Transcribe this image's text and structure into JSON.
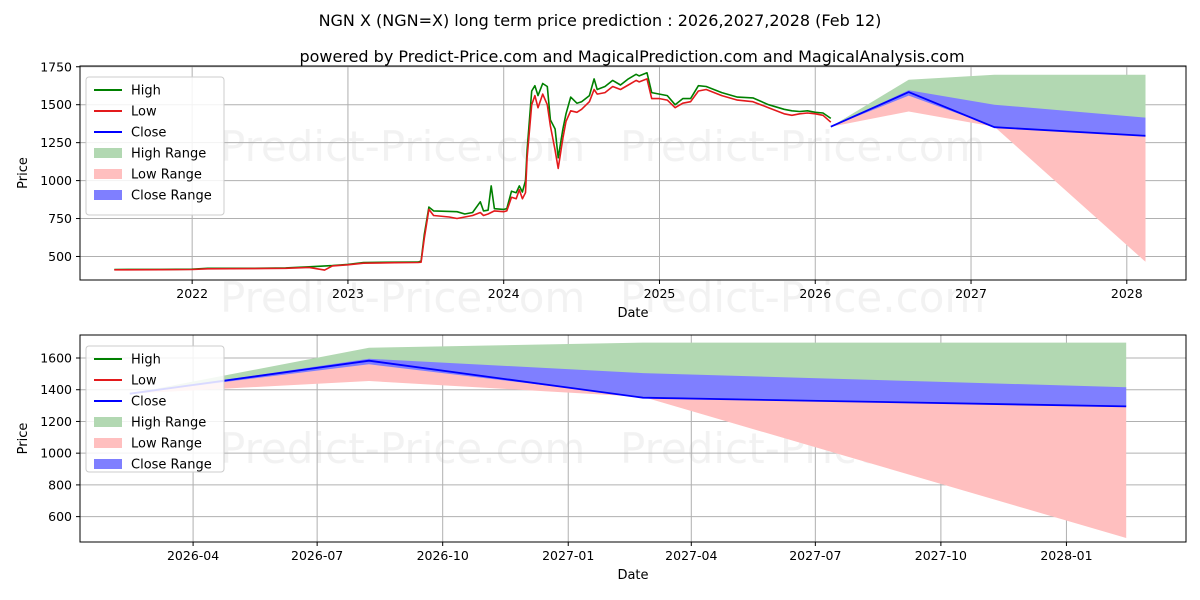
{
  "title": "NGN X (NGN=X) long term price prediction : 2026,2027,2028 (Feb 12)",
  "subtitle": "powered by Predict-Price.com and MagicalPrediction.com and MagicalAnalysis.com",
  "watermark": "Predict-Price.com",
  "colors": {
    "high": "#008000",
    "low": "#e31a1c",
    "close": "#0000ff",
    "high_range": "#b2d8b2",
    "low_range": "#ffbfbf",
    "close_range": "#7f7fff"
  },
  "legend": [
    "High",
    "Low",
    "Close",
    "High Range",
    "Low Range",
    "Close Range"
  ],
  "chart_data": [
    {
      "type": "line",
      "title": "",
      "xlabel": "Date",
      "ylabel": "Price",
      "xlim": [
        2021.28,
        2028.38
      ],
      "ylim": [
        345,
        1755
      ],
      "xticks": [
        {
          "v": 2022,
          "label": "2022"
        },
        {
          "v": 2023,
          "label": "2023"
        },
        {
          "v": 2024,
          "label": "2024"
        },
        {
          "v": 2025,
          "label": "2025"
        },
        {
          "v": 2026,
          "label": "2026"
        },
        {
          "v": 2027,
          "label": "2027"
        },
        {
          "v": 2028,
          "label": "2028"
        }
      ],
      "yticks": [
        {
          "v": 500,
          "label": "500"
        },
        {
          "v": 750,
          "label": "750"
        },
        {
          "v": 1000,
          "label": "1000"
        },
        {
          "v": 1250,
          "label": "1250"
        },
        {
          "v": 1500,
          "label": "1500"
        },
        {
          "v": 1750,
          "label": "1750"
        }
      ],
      "legend_position": "upper-left",
      "series": [
        {
          "name": "High",
          "points": [
            [
              2021.5,
              414
            ],
            [
              2021.8,
              415
            ],
            [
              2022.0,
              416
            ],
            [
              2022.1,
              422
            ],
            [
              2022.4,
              422
            ],
            [
              2022.6,
              425
            ],
            [
              2022.75,
              432
            ],
            [
              2022.9,
              440
            ],
            [
              2023.0,
              448
            ],
            [
              2023.1,
              460
            ],
            [
              2023.3,
              462
            ],
            [
              2023.45,
              463
            ],
            [
              2023.47,
              470
            ],
            [
              2023.49,
              645
            ],
            [
              2023.52,
              825
            ],
            [
              2023.55,
              800
            ],
            [
              2023.7,
              795
            ],
            [
              2023.75,
              780
            ],
            [
              2023.8,
              790
            ],
            [
              2023.85,
              860
            ],
            [
              2023.87,
              800
            ],
            [
              2023.9,
              805
            ],
            [
              2023.92,
              965
            ],
            [
              2023.94,
              815
            ],
            [
              2024.0,
              810
            ],
            [
              2024.02,
              815
            ],
            [
              2024.05,
              930
            ],
            [
              2024.08,
              920
            ],
            [
              2024.1,
              965
            ],
            [
              2024.12,
              925
            ],
            [
              2024.14,
              1000
            ],
            [
              2024.15,
              1200
            ],
            [
              2024.18,
              1590
            ],
            [
              2024.2,
              1625
            ],
            [
              2024.22,
              1560
            ],
            [
              2024.25,
              1640
            ],
            [
              2024.28,
              1620
            ],
            [
              2024.3,
              1400
            ],
            [
              2024.33,
              1340
            ],
            [
              2024.35,
              1150
            ],
            [
              2024.38,
              1340
            ],
            [
              2024.4,
              1440
            ],
            [
              2024.43,
              1550
            ],
            [
              2024.47,
              1510
            ],
            [
              2024.5,
              1520
            ],
            [
              2024.55,
              1560
            ],
            [
              2024.58,
              1670
            ],
            [
              2024.6,
              1600
            ],
            [
              2024.65,
              1620
            ],
            [
              2024.7,
              1660
            ],
            [
              2024.75,
              1630
            ],
            [
              2024.8,
              1670
            ],
            [
              2024.85,
              1700
            ],
            [
              2024.87,
              1690
            ],
            [
              2024.92,
              1710
            ],
            [
              2024.95,
              1580
            ],
            [
              2025.0,
              1570
            ],
            [
              2025.05,
              1560
            ],
            [
              2025.1,
              1500
            ],
            [
              2025.15,
              1540
            ],
            [
              2025.2,
              1540
            ],
            [
              2025.25,
              1625
            ],
            [
              2025.3,
              1620
            ],
            [
              2025.4,
              1580
            ],
            [
              2025.5,
              1550
            ],
            [
              2025.6,
              1545
            ],
            [
              2025.7,
              1500
            ],
            [
              2025.8,
              1470
            ],
            [
              2025.85,
              1460
            ],
            [
              2025.9,
              1455
            ],
            [
              2025.95,
              1460
            ],
            [
              2026.0,
              1450
            ],
            [
              2026.05,
              1445
            ],
            [
              2026.1,
              1410
            ]
          ]
        },
        {
          "name": "Low",
          "points": [
            [
              2021.5,
              412
            ],
            [
              2021.8,
              413
            ],
            [
              2022.0,
              414
            ],
            [
              2022.1,
              419
            ],
            [
              2022.4,
              420
            ],
            [
              2022.6,
              422
            ],
            [
              2022.75,
              428
            ],
            [
              2022.85,
              410
            ],
            [
              2022.9,
              438
            ],
            [
              2023.0,
              445
            ],
            [
              2023.1,
              456
            ],
            [
              2023.3,
              459
            ],
            [
              2023.45,
              460
            ],
            [
              2023.47,
              462
            ],
            [
              2023.49,
              620
            ],
            [
              2023.52,
              810
            ],
            [
              2023.55,
              770
            ],
            [
              2023.65,
              760
            ],
            [
              2023.7,
              750
            ],
            [
              2023.75,
              760
            ],
            [
              2023.8,
              770
            ],
            [
              2023.85,
              790
            ],
            [
              2023.87,
              770
            ],
            [
              2023.9,
              780
            ],
            [
              2023.94,
              800
            ],
            [
              2024.0,
              795
            ],
            [
              2024.02,
              800
            ],
            [
              2024.05,
              890
            ],
            [
              2024.08,
              880
            ],
            [
              2024.1,
              940
            ],
            [
              2024.12,
              880
            ],
            [
              2024.14,
              920
            ],
            [
              2024.15,
              1150
            ],
            [
              2024.18,
              1500
            ],
            [
              2024.2,
              1560
            ],
            [
              2024.22,
              1480
            ],
            [
              2024.25,
              1570
            ],
            [
              2024.28,
              1500
            ],
            [
              2024.3,
              1360
            ],
            [
              2024.33,
              1200
            ],
            [
              2024.35,
              1080
            ],
            [
              2024.38,
              1280
            ],
            [
              2024.4,
              1390
            ],
            [
              2024.43,
              1460
            ],
            [
              2024.47,
              1450
            ],
            [
              2024.5,
              1470
            ],
            [
              2024.55,
              1520
            ],
            [
              2024.58,
              1600
            ],
            [
              2024.6,
              1570
            ],
            [
              2024.65,
              1580
            ],
            [
              2024.7,
              1620
            ],
            [
              2024.75,
              1600
            ],
            [
              2024.8,
              1630
            ],
            [
              2024.85,
              1660
            ],
            [
              2024.87,
              1650
            ],
            [
              2024.92,
              1670
            ],
            [
              2024.95,
              1540
            ],
            [
              2025.0,
              1540
            ],
            [
              2025.05,
              1530
            ],
            [
              2025.1,
              1480
            ],
            [
              2025.15,
              1510
            ],
            [
              2025.2,
              1520
            ],
            [
              2025.25,
              1590
            ],
            [
              2025.3,
              1600
            ],
            [
              2025.4,
              1560
            ],
            [
              2025.5,
              1530
            ],
            [
              2025.6,
              1520
            ],
            [
              2025.7,
              1480
            ],
            [
              2025.8,
              1440
            ],
            [
              2025.85,
              1430
            ],
            [
              2025.9,
              1440
            ],
            [
              2025.95,
              1445
            ],
            [
              2026.0,
              1440
            ],
            [
              2026.05,
              1430
            ],
            [
              2026.1,
              1385
            ]
          ]
        },
        {
          "name": "High Range",
          "points": [
            [
              2026.1,
              1355
            ],
            [
              2026.6,
              1665
            ],
            [
              2027.15,
              1697
            ],
            [
              2028.12,
              1697
            ]
          ]
        },
        {
          "name": "Low Range",
          "points": [
            [
              2026.1,
              1355
            ],
            [
              2026.6,
              1455
            ],
            [
              2027.15,
              1355
            ],
            [
              2028.12,
              465
            ]
          ]
        },
        {
          "name": "Close Range Upper",
          "points": [
            [
              2026.1,
              1355
            ],
            [
              2026.6,
              1595
            ],
            [
              2027.15,
              1500
            ],
            [
              2028.12,
              1415
            ]
          ]
        },
        {
          "name": "Close Range Lower",
          "points": [
            [
              2026.1,
              1355
            ],
            [
              2026.6,
              1560
            ],
            [
              2027.15,
              1355
            ],
            [
              2028.12,
              1295
            ]
          ]
        },
        {
          "name": "Close",
          "points": [
            [
              2026.1,
              1355
            ],
            [
              2026.6,
              1583
            ],
            [
              2027.15,
              1352
            ],
            [
              2028.12,
              1295
            ]
          ]
        }
      ]
    },
    {
      "type": "line",
      "title": "",
      "xlabel": "Date",
      "ylabel": "Price",
      "xlim": [
        2026.02,
        2028.24
      ],
      "ylim": [
        440,
        1745
      ],
      "xticks": [
        {
          "v": 2026.247,
          "label": "2026-04"
        },
        {
          "v": 2026.496,
          "label": "2026-07"
        },
        {
          "v": 2026.748,
          "label": "2026-10"
        },
        {
          "v": 2027.0,
          "label": "2027-01"
        },
        {
          "v": 2027.247,
          "label": "2027-04"
        },
        {
          "v": 2027.496,
          "label": "2027-07"
        },
        {
          "v": 2027.748,
          "label": "2027-10"
        },
        {
          "v": 2028.0,
          "label": "2028-01"
        }
      ],
      "yticks": [
        {
          "v": 600,
          "label": "600"
        },
        {
          "v": 800,
          "label": "800"
        },
        {
          "v": 1000,
          "label": "1000"
        },
        {
          "v": 1200,
          "label": "1200"
        },
        {
          "v": 1400,
          "label": "1400"
        },
        {
          "v": 1600,
          "label": "1600"
        }
      ],
      "legend_position": "upper-left",
      "series": [
        {
          "name": "High Range",
          "points": [
            [
              2026.12,
              1375
            ],
            [
              2026.6,
              1665
            ],
            [
              2027.15,
              1697
            ],
            [
              2028.12,
              1697
            ]
          ]
        },
        {
          "name": "Low Range",
          "points": [
            [
              2026.12,
              1375
            ],
            [
              2026.6,
              1455
            ],
            [
              2027.15,
              1355
            ],
            [
              2028.12,
              465
            ]
          ]
        },
        {
          "name": "Close Range Upper",
          "points": [
            [
              2026.12,
              1375
            ],
            [
              2026.6,
              1595
            ],
            [
              2027.15,
              1505
            ],
            [
              2028.12,
              1415
            ]
          ]
        },
        {
          "name": "Close Range Lower",
          "points": [
            [
              2026.12,
              1375
            ],
            [
              2026.6,
              1560
            ],
            [
              2027.15,
              1355
            ],
            [
              2028.12,
              1295
            ]
          ]
        },
        {
          "name": "Close",
          "points": [
            [
              2026.12,
              1375
            ],
            [
              2026.6,
              1583
            ],
            [
              2027.15,
              1350
            ],
            [
              2028.12,
              1295
            ]
          ]
        }
      ]
    }
  ]
}
